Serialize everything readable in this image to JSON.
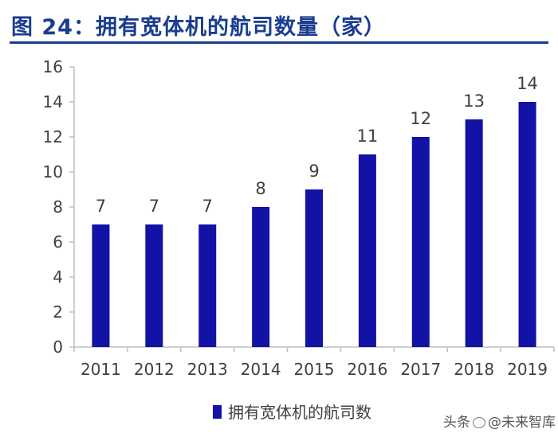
{
  "title": "图 24：拥有宽体机的航司数量（家）",
  "watermark": {
    "prefix": "头条",
    "suffix": "@未来智库"
  },
  "colors": {
    "bar": "#1212a6",
    "title": "#1a3d8f",
    "axis": "#bfbfbf",
    "text": "#404040"
  },
  "chart_data": {
    "type": "bar",
    "categories": [
      "2011",
      "2012",
      "2013",
      "2014",
      "2015",
      "2016",
      "2017",
      "2018",
      "2019"
    ],
    "series": [
      {
        "name": "拥有宽体机的航司数",
        "values": [
          7,
          7,
          7,
          8,
          9,
          11,
          12,
          13,
          14
        ]
      }
    ],
    "ylim": [
      0,
      16
    ],
    "yticks": [
      0,
      2,
      4,
      6,
      8,
      10,
      12,
      14,
      16
    ],
    "data_labels": true,
    "legend": "bottom-center",
    "grid": false
  }
}
